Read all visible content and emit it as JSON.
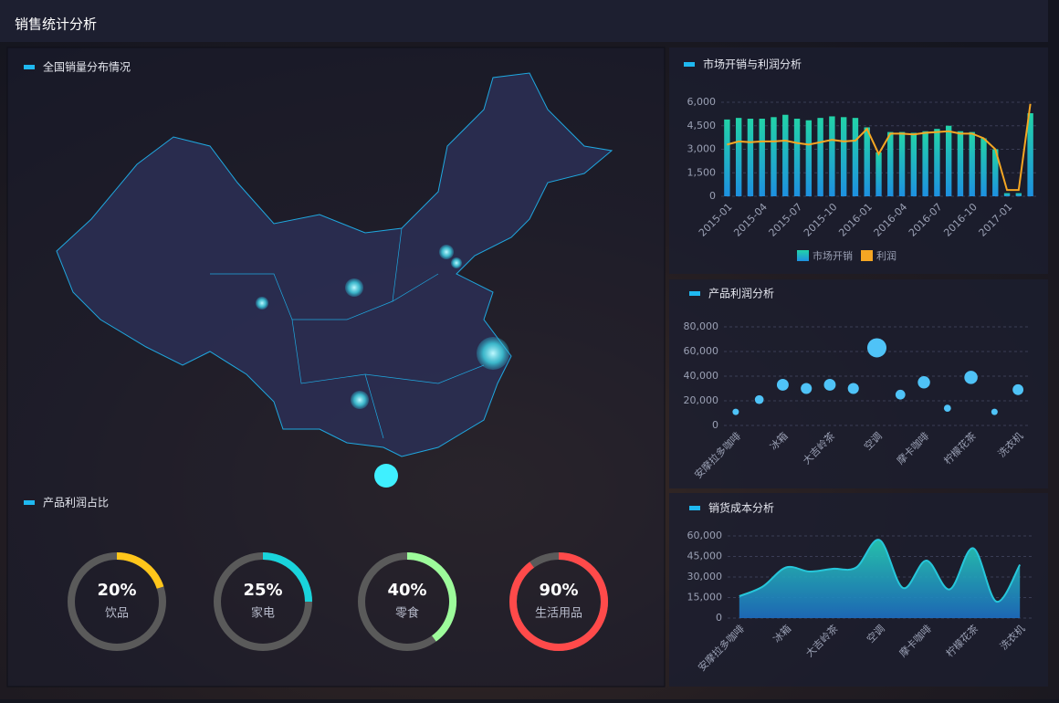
{
  "header": {
    "title": "销售统计分析"
  },
  "map": {
    "title": "全国销量分布情况"
  },
  "chart_data": [
    {
      "type": "bar",
      "title": "市场开销与利润分析",
      "categories": [
        "2015-01",
        null,
        null,
        "2015-04",
        null,
        null,
        "2015-07",
        null,
        null,
        "2015-10",
        null,
        null,
        "2016-01",
        null,
        null,
        "2016-04",
        null,
        null,
        "2016-07",
        null,
        null,
        "2016-10",
        null,
        null,
        "2017-01",
        null,
        null
      ],
      "series": [
        {
          "name": "市场开销",
          "color": "#22d3a8",
          "values": [
            4900,
            5000,
            4950,
            4950,
            5050,
            5200,
            4950,
            4850,
            5000,
            5100,
            5050,
            5000,
            4400,
            2800,
            4100,
            4100,
            4050,
            4150,
            4300,
            4500,
            4150,
            4100,
            3700,
            3000,
            200,
            200,
            5300
          ]
        },
        {
          "name": "利润",
          "color": "#f5a623",
          "values": [
            3300,
            3500,
            3450,
            3500,
            3500,
            3550,
            3400,
            3300,
            3450,
            3600,
            3500,
            3550,
            4300,
            2700,
            4000,
            4000,
            3950,
            4050,
            4100,
            4150,
            4000,
            4000,
            3700,
            3000,
            400,
            400,
            5900
          ]
        }
      ],
      "ylim": [
        0,
        6000
      ],
      "yticks": [
        0,
        {
          "value": 1500,
          "label": "1,500"
        },
        {
          "value": 3000,
          "label": "3,000"
        },
        {
          "value": 4500,
          "label": "4,500"
        },
        {
          "value": 6000,
          "label": "6,000"
        }
      ],
      "grid": true,
      "legend": "bottom"
    },
    {
      "type": "scatter",
      "title": "产品利润分析",
      "color": "#4fc3f7",
      "categories": [
        "安摩拉多咖啡",
        null,
        "冰箱",
        null,
        "大吉岭茶",
        null,
        "空调",
        null,
        "摩卡咖啡",
        null,
        "柠檬花茶",
        null,
        "洗衣机"
      ],
      "values": [
        11000,
        21000,
        33000,
        30000,
        33000,
        30000,
        63000,
        25000,
        35000,
        14000,
        39000,
        11000,
        29000
      ],
      "ylim": [
        0,
        80000
      ],
      "yticks": [
        0,
        {
          "value": 20000,
          "label": "20,000"
        },
        {
          "value": 40000,
          "label": "40,000"
        },
        {
          "value": 60000,
          "label": "60,000"
        },
        {
          "value": 80000,
          "label": "80,000"
        }
      ],
      "grid": true
    },
    {
      "type": "area",
      "title": "销货成本分析",
      "color": "#26c6da",
      "categories": [
        "安摩拉多咖啡",
        null,
        "冰箱",
        null,
        "大吉岭茶",
        null,
        "空调",
        null,
        "摩卡咖啡",
        null,
        "柠檬花茶",
        null,
        "洗衣机"
      ],
      "values": [
        16000,
        23000,
        37000,
        34000,
        36000,
        37000,
        57000,
        22000,
        42000,
        21000,
        51000,
        12000,
        39000
      ],
      "ylim": [
        0,
        60000
      ],
      "yticks": [
        0,
        {
          "value": 15000,
          "label": "15,000"
        },
        {
          "value": 30000,
          "label": "30,000"
        },
        {
          "value": 45000,
          "label": "45,000"
        },
        {
          "value": 60000,
          "label": "60,000"
        }
      ],
      "grid": true
    },
    {
      "type": "gauge",
      "title": "产品利润占比",
      "categories": [
        "饮品",
        "家电",
        "零食",
        "生活用品"
      ],
      "values": [
        20,
        25,
        40,
        90
      ],
      "value_labels": [
        "20%",
        "25%",
        "40%",
        "90%"
      ],
      "colors": [
        "#ffc61a",
        "#19d4dc",
        "#9dfb9b",
        "#ff4a4a"
      ],
      "ylim": [
        0,
        100
      ]
    }
  ]
}
